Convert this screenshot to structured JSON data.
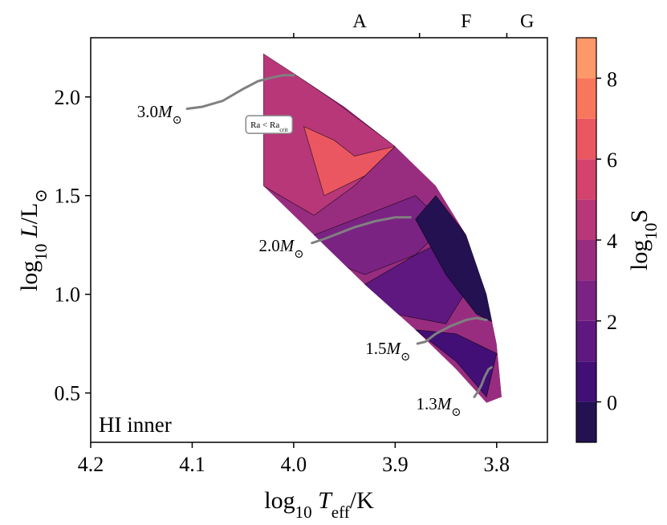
{
  "chart_data": {
    "type": "heatmap",
    "panel_label": "HI inner",
    "xlabel": {
      "prefix": "log",
      "sub": "10",
      "var": "T",
      "var_sub": "eff",
      "unit": "/K"
    },
    "ylabel": {
      "prefix": "log",
      "sub": "10",
      "var": "L",
      "unit": "/L",
      "sun": "⊙"
    },
    "colorbar_label": {
      "prefix": "log",
      "sub": "10",
      "var": "S"
    },
    "xlim": [
      4.2,
      3.75
    ],
    "ylim": [
      0.25,
      2.3
    ],
    "x_ticks": [
      4.2,
      4.1,
      4.0,
      3.9,
      3.8
    ],
    "x_tick_labels": [
      "4.2",
      "4.1",
      "4.0",
      "3.9",
      "3.8"
    ],
    "y_ticks": [
      0.5,
      1.0,
      1.5,
      2.0
    ],
    "y_tick_labels": [
      "0.5",
      "1.0",
      "1.5",
      "2.0"
    ],
    "colorbar": {
      "min": -1,
      "max": 9,
      "ticks": [
        0,
        2,
        4,
        6,
        8
      ],
      "tick_labels": [
        "0",
        "2",
        "4",
        "6",
        "8"
      ],
      "levels": [
        -1,
        0,
        1,
        2,
        3,
        4,
        5,
        6,
        7,
        8,
        9
      ],
      "colors": [
        "#0c0927",
        "#231151",
        "#410f75",
        "#5f187f",
        "#7b2382",
        "#982d80",
        "#b73779",
        "#d3436e",
        "#eb5760",
        "#f8765c",
        "#fd9969",
        "#feba80",
        "#fddc9e"
      ]
    },
    "spectral_types": [
      {
        "label": "A",
        "boundary": 4.0
      },
      {
        "label": "F",
        "boundary": 3.876
      },
      {
        "label": "G",
        "boundary": 3.79
      }
    ],
    "spectral_label_x": [
      3.935,
      3.83,
      3.77
    ],
    "tracks": [
      {
        "label": "3.0",
        "unit": "M",
        "sun": "⊙",
        "x": [
          4.105,
          4.09,
          4.07,
          4.05,
          4.035,
          4.02,
          4.01,
          4.0
        ],
        "y": [
          1.94,
          1.95,
          1.98,
          2.04,
          2.08,
          2.1,
          2.11,
          2.11
        ]
      },
      {
        "label": "2.0",
        "unit": "M",
        "sun": "⊙",
        "x": [
          3.982,
          3.97,
          3.955,
          3.94,
          3.92,
          3.9,
          3.885
        ],
        "y": [
          1.26,
          1.28,
          1.31,
          1.34,
          1.37,
          1.39,
          1.39
        ]
      },
      {
        "label": "1.5",
        "unit": "M",
        "sun": "⊙",
        "x": [
          3.878,
          3.87,
          3.86,
          3.845,
          3.83,
          3.82,
          3.81
        ],
        "y": [
          0.75,
          0.76,
          0.8,
          0.84,
          0.87,
          0.88,
          0.87
        ]
      },
      {
        "label": "1.3",
        "unit": "M",
        "sun": "⊙",
        "x": [
          3.822,
          3.818,
          3.815,
          3.812,
          3.808,
          3.805
        ],
        "y": [
          0.48,
          0.51,
          0.54,
          0.58,
          0.62,
          0.63
        ]
      }
    ],
    "track_label_pos": [
      {
        "x": 4.11,
        "y": 1.93
      },
      {
        "x": 3.99,
        "y": 1.25
      },
      {
        "x": 3.885,
        "y": 0.73
      },
      {
        "x": 3.835,
        "y": 0.45
      }
    ],
    "annotation": {
      "text": "Ra < Ra",
      "sub": "crit",
      "x": 4.025,
      "y": 1.86
    },
    "region": {
      "x": [
        4.03,
        4.0,
        3.95,
        3.9,
        3.86,
        3.83,
        3.81,
        3.8,
        3.795,
        3.81,
        3.84,
        3.88,
        3.93,
        3.98,
        4.03
      ],
      "y": [
        2.22,
        2.12,
        1.95,
        1.75,
        1.55,
        1.3,
        1.0,
        0.75,
        0.48,
        0.45,
        0.62,
        0.82,
        1.05,
        1.3,
        1.55
      ]
    },
    "bands": [
      {
        "level": 5,
        "x": [
          4.03,
          4.0,
          3.96,
          3.9,
          3.94,
          3.98,
          4.03
        ],
        "y": [
          2.22,
          2.12,
          1.98,
          1.75,
          1.55,
          1.4,
          1.55
        ]
      },
      {
        "level": 7,
        "x": [
          3.99,
          3.96,
          3.94,
          3.9,
          3.93,
          3.97
        ],
        "y": [
          1.85,
          1.78,
          1.7,
          1.75,
          1.6,
          1.5
        ]
      },
      {
        "level": 3,
        "x": [
          3.98,
          3.93,
          3.88,
          3.85,
          3.88,
          3.93,
          3.98
        ],
        "y": [
          1.3,
          1.4,
          1.5,
          1.35,
          1.2,
          1.1,
          1.2
        ]
      },
      {
        "level": 2,
        "x": [
          3.93,
          3.88,
          3.84,
          3.82,
          3.85,
          3.9
        ],
        "y": [
          1.05,
          1.2,
          1.3,
          1.1,
          0.85,
          0.9
        ]
      },
      {
        "level": 0,
        "x": [
          3.88,
          3.86,
          3.83,
          3.81,
          3.8,
          3.82,
          3.85
        ],
        "y": [
          1.38,
          1.5,
          1.3,
          1.0,
          0.85,
          0.9,
          1.1
        ]
      },
      {
        "level": 1,
        "x": [
          3.88,
          3.84,
          3.81,
          3.8,
          3.84
        ],
        "y": [
          0.82,
          0.66,
          0.48,
          0.7,
          0.8
        ]
      }
    ]
  }
}
